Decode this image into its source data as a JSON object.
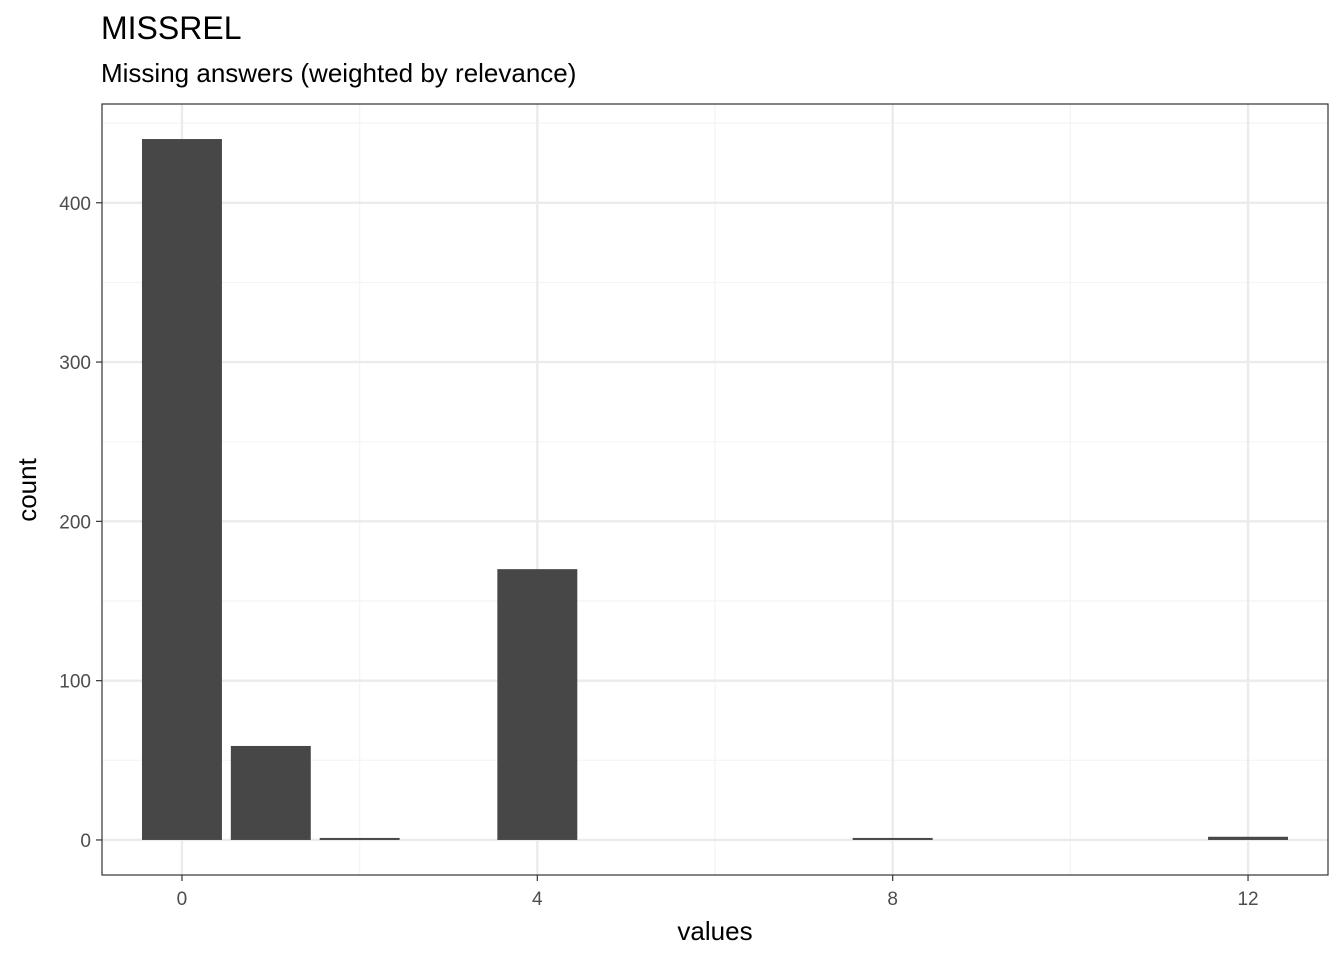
{
  "chart_data": {
    "type": "bar",
    "title": "MISSREL",
    "subtitle": "Missing answers (weighted by relevance)",
    "xlabel": "values",
    "ylabel": "count",
    "x": [
      0,
      1,
      2,
      4,
      8,
      12
    ],
    "values": [
      440,
      59,
      1,
      170,
      1,
      2
    ],
    "bar_width": 0.9,
    "xlim": [
      -0.9,
      12.9
    ],
    "ylim": [
      -22,
      462
    ],
    "x_ticks": [
      0,
      4,
      8,
      12
    ],
    "x_minor_ticks": [
      2,
      6,
      10
    ],
    "y_ticks": [
      0,
      100,
      200,
      300,
      400
    ],
    "y_minor_ticks": [
      50,
      150,
      250,
      350,
      450
    ],
    "grid": true,
    "theme": "bw",
    "colors": {
      "bar": "#474747",
      "grid_major": "#ebebeb",
      "grid_minor": "#f4f4f4",
      "panel_border": "#333333",
      "tick_text": "#4d4d4d"
    }
  }
}
